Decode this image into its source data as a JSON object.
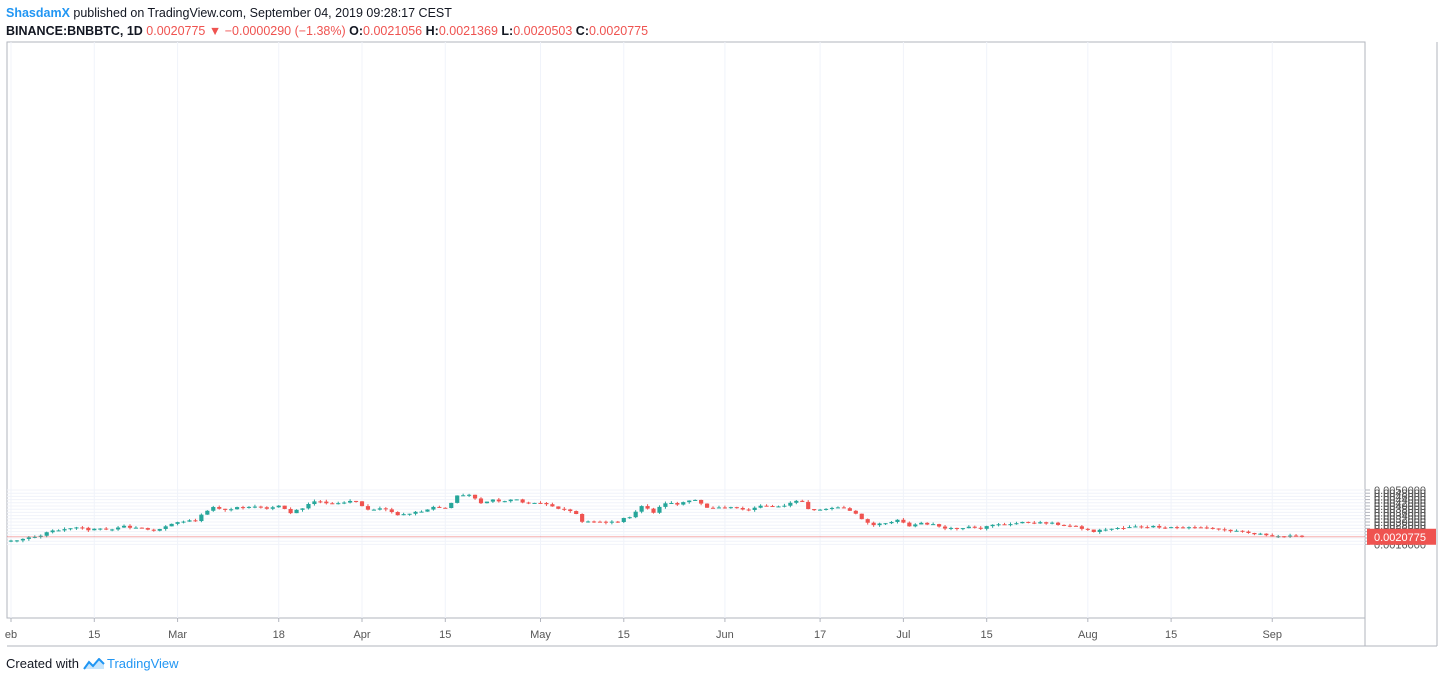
{
  "header": {
    "author": "ShasdamX",
    "published_text": " published on TradingView.com, September 04, 2019 09:28:17 CEST",
    "symbol": "BINANCE:BNBBTC, 1D",
    "last": "0.0020775",
    "change_arrow": "▼",
    "change": "−0.0000290 (−1.38%)",
    "o_label": "O:",
    "o_value": "0.0021056",
    "h_label": "H:",
    "h_value": "0.0021369",
    "l_label": "L:",
    "l_value": "0.0020503",
    "c_label": "C:",
    "c_value": "0.0020775"
  },
  "footer": {
    "created_with": "Created with",
    "brand": "TradingView"
  },
  "colors": {
    "up": "#26a69a",
    "down": "#ef5350",
    "grid": "#f0f3fa",
    "axis": "#555555",
    "last_price_bg": "#ef5350"
  },
  "chart_data": {
    "type": "candlestick",
    "y_range": [
      0.0015,
      0.0051
    ],
    "y_ticks": [
      "0.0016000",
      "0.0018000",
      "0.0020000",
      "0.0022000",
      "0.0024000",
      "0.0026000",
      "0.0028000",
      "0.0030000",
      "0.0032000",
      "0.0034000",
      "0.0036000",
      "0.0038000",
      "0.0040000",
      "0.0042000",
      "0.0044000",
      "0.0046000",
      "0.0048000",
      "0.0050000"
    ],
    "x_ticks": [
      {
        "label": "eb",
        "day": 1
      },
      {
        "label": "15",
        "day": 15
      },
      {
        "label": "Mar",
        "day": 29
      },
      {
        "label": "18",
        "day": 46
      },
      {
        "label": "Apr",
        "day": 60
      },
      {
        "label": "15",
        "day": 74
      },
      {
        "label": "May",
        "day": 90
      },
      {
        "label": "15",
        "day": 104
      },
      {
        "label": "Jun",
        "day": 121
      },
      {
        "label": "17",
        "day": 137
      },
      {
        "label": "Jul",
        "day": 151
      },
      {
        "label": "15",
        "day": 165
      },
      {
        "label": "Aug",
        "day": 182
      },
      {
        "label": "15",
        "day": 196
      },
      {
        "label": "Sep",
        "day": 213
      }
    ],
    "last_price_label": "0.0020775",
    "last_price": 0.0020775,
    "day_range": [
      1,
      218
    ],
    "waypoints": [
      [
        1,
        0.00182
      ],
      [
        4,
        0.00198
      ],
      [
        6,
        0.00212
      ],
      [
        7,
        0.0024
      ],
      [
        9,
        0.00245
      ],
      [
        11,
        0.00258
      ],
      [
        12,
        0.00268
      ],
      [
        14,
        0.00252
      ],
      [
        16,
        0.00262
      ],
      [
        18,
        0.0025
      ],
      [
        20,
        0.00272
      ],
      [
        22,
        0.00265
      ],
      [
        25,
        0.00248
      ],
      [
        27,
        0.00268
      ],
      [
        29,
        0.003
      ],
      [
        32,
        0.0031
      ],
      [
        33,
        0.0035
      ],
      [
        35,
        0.00395
      ],
      [
        37,
        0.0037
      ],
      [
        39,
        0.0039
      ],
      [
        41,
        0.00395
      ],
      [
        44,
        0.00385
      ],
      [
        46,
        0.00398
      ],
      [
        48,
        0.0036
      ],
      [
        50,
        0.0039
      ],
      [
        52,
        0.0043
      ],
      [
        55,
        0.00415
      ],
      [
        59,
        0.0043
      ],
      [
        61,
        0.0038
      ],
      [
        64,
        0.00385
      ],
      [
        66,
        0.00345
      ],
      [
        68,
        0.00355
      ],
      [
        70,
        0.00365
      ],
      [
        72,
        0.0039
      ],
      [
        74,
        0.00385
      ],
      [
        76,
        0.00465
      ],
      [
        78,
        0.0047
      ],
      [
        80,
        0.0042
      ],
      [
        82,
        0.00435
      ],
      [
        84,
        0.0043
      ],
      [
        86,
        0.0044
      ],
      [
        88,
        0.00415
      ],
      [
        90,
        0.0042
      ],
      [
        92,
        0.00395
      ],
      [
        94,
        0.00375
      ],
      [
        96,
        0.0035
      ],
      [
        97,
        0.00305
      ],
      [
        99,
        0.003
      ],
      [
        101,
        0.00295
      ],
      [
        103,
        0.00305
      ],
      [
        105,
        0.00335
      ],
      [
        107,
        0.004
      ],
      [
        109,
        0.0036
      ],
      [
        111,
        0.0042
      ],
      [
        113,
        0.0041
      ],
      [
        115,
        0.0044
      ],
      [
        116,
        0.0044
      ],
      [
        118,
        0.00385
      ],
      [
        120,
        0.00385
      ],
      [
        123,
        0.0039
      ],
      [
        125,
        0.00378
      ],
      [
        127,
        0.004
      ],
      [
        129,
        0.00395
      ],
      [
        131,
        0.004
      ],
      [
        133,
        0.0043
      ],
      [
        134,
        0.0043
      ],
      [
        135,
        0.0038
      ],
      [
        137,
        0.00375
      ],
      [
        139,
        0.0039
      ],
      [
        141,
        0.00388
      ],
      [
        143,
        0.00355
      ],
      [
        144,
        0.0032
      ],
      [
        146,
        0.0028
      ],
      [
        148,
        0.0029
      ],
      [
        150,
        0.0031
      ],
      [
        152,
        0.00275
      ],
      [
        154,
        0.00295
      ],
      [
        156,
        0.00282
      ],
      [
        158,
        0.00265
      ],
      [
        160,
        0.00258
      ],
      [
        162,
        0.00275
      ],
      [
        164,
        0.00262
      ],
      [
        166,
        0.0028
      ],
      [
        169,
        0.0029
      ],
      [
        172,
        0.00298
      ],
      [
        176,
        0.0029
      ],
      [
        179,
        0.00275
      ],
      [
        181,
        0.0026
      ],
      [
        183,
        0.0024
      ],
      [
        185,
        0.00255
      ],
      [
        188,
        0.00262
      ],
      [
        190,
        0.0027
      ],
      [
        193,
        0.00272
      ],
      [
        196,
        0.00268
      ],
      [
        199,
        0.00265
      ],
      [
        202,
        0.00265
      ],
      [
        204,
        0.00255
      ],
      [
        206,
        0.00245
      ],
      [
        208,
        0.00235
      ],
      [
        210,
        0.00225
      ],
      [
        212,
        0.0022
      ],
      [
        214,
        0.00212
      ],
      [
        216,
        0.0021
      ],
      [
        218,
        0.00207
      ]
    ]
  }
}
